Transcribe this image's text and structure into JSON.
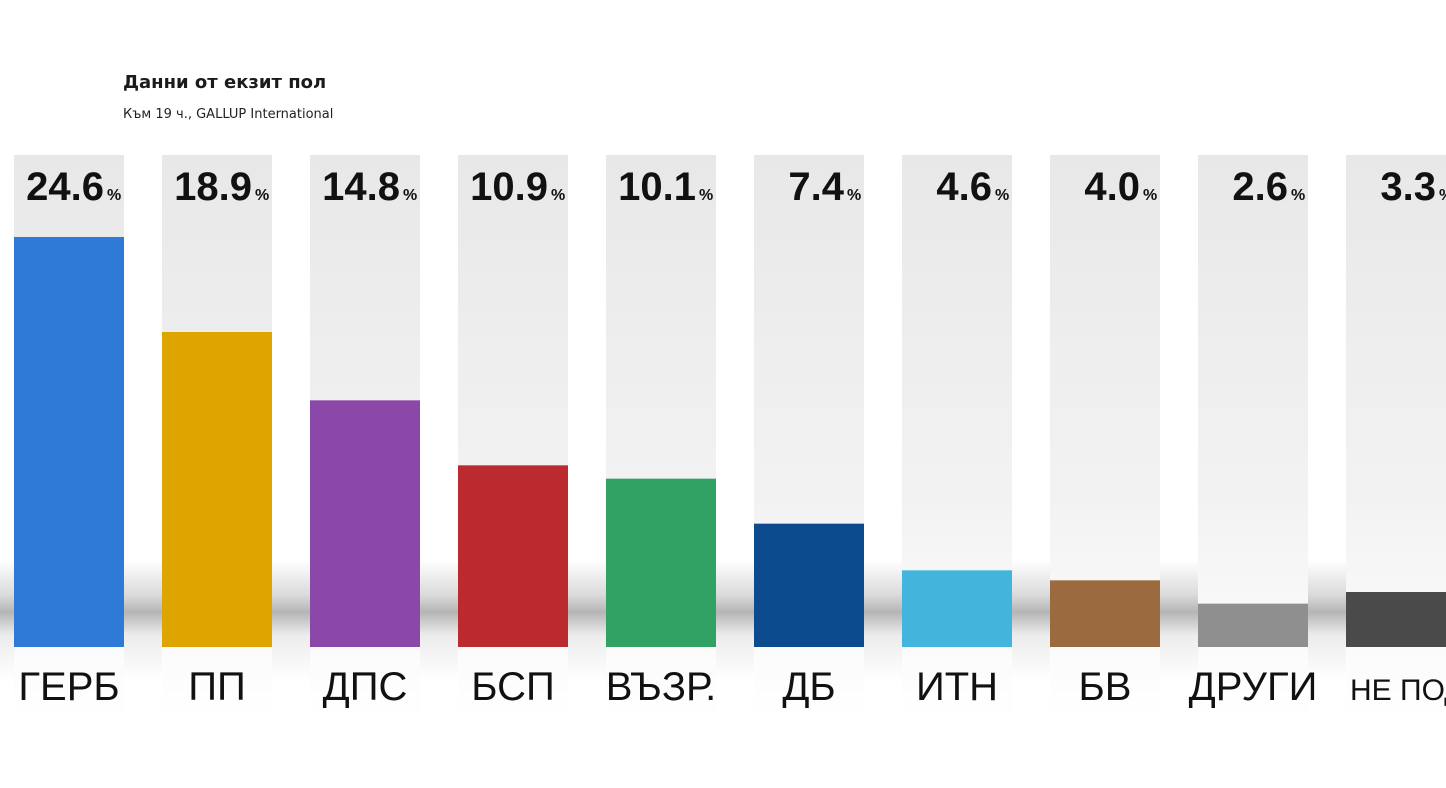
{
  "header": {
    "title": "Данни от екзит пол",
    "subtitle": "Към 19 ч., GALLUP International"
  },
  "chart_data": {
    "type": "bar",
    "title": "Данни от екзит пол",
    "subtitle": "Към 19 ч., GALLUP International",
    "categories": [
      "ГЕРБ",
      "ПП",
      "ДПС",
      "БСП",
      "ВЪЗР.",
      "ДБ",
      "ИТН",
      "БВ",
      "ДРУГИ",
      "НЕ ПОДК"
    ],
    "values": [
      24.6,
      18.9,
      14.8,
      10.9,
      10.1,
      7.4,
      4.6,
      4.0,
      2.6,
      3.3
    ],
    "value_labels": [
      "24.6",
      "18.9",
      "14.8",
      "10.9",
      "10.1",
      "7.4",
      "4.6",
      "4.0",
      "2.6",
      "3.3"
    ],
    "unit": "%",
    "colors": [
      "#2f7ad6",
      "#dea400",
      "#8b48a8",
      "#bb2a2f",
      "#32a164",
      "#0b4b8e",
      "#43b4dc",
      "#9b6a3e",
      "#8f8f8f",
      "#4a4a4a"
    ],
    "xlabel": "",
    "ylabel": "",
    "ylim": [
      0,
      24.6
    ],
    "grid": false,
    "legend": "none"
  }
}
